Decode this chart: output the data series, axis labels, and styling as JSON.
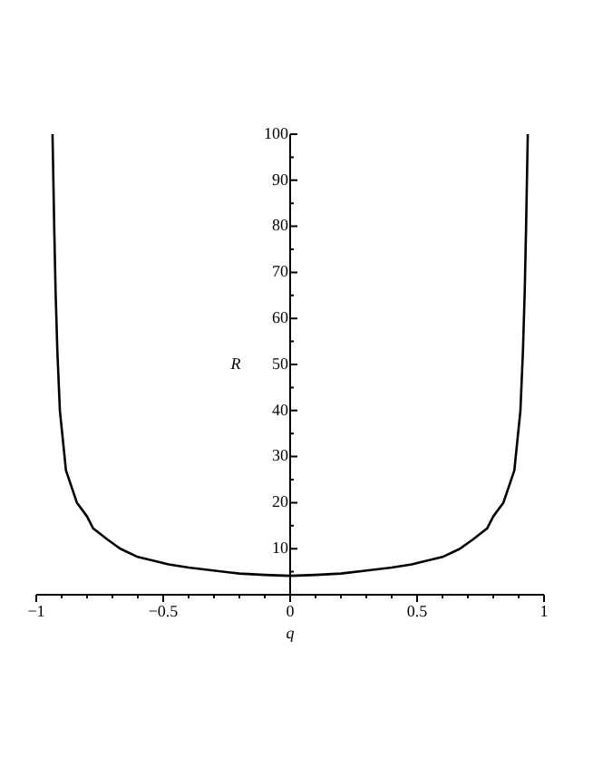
{
  "chart_data": {
    "type": "line",
    "xlabel": "q",
    "ylabel": "R",
    "xlim": [
      -1,
      1
    ],
    "ylim": [
      0,
      100
    ],
    "xticks": [
      -1,
      -0.5,
      0,
      0.5,
      1
    ],
    "yticks": [
      {
        "value": 0,
        "label": null
      },
      10,
      20,
      30,
      40,
      50,
      60,
      70,
      80,
      90,
      100
    ],
    "grid": false,
    "legend": false,
    "marker": "none",
    "line_style": "solid",
    "series": [
      {
        "color": "#000000",
        "x": [
          -0.936,
          -0.929,
          -0.924,
          -0.917,
          -0.907,
          -0.883,
          -0.84,
          -0.8,
          -0.776,
          -0.72,
          -0.669,
          -0.6,
          -0.479,
          -0.4,
          -0.31,
          -0.2,
          -0.1,
          0,
          0.1,
          0.2,
          0.31,
          0.4,
          0.479,
          0.6,
          0.669,
          0.72,
          0.776,
          0.8,
          0.84,
          0.883,
          0.907,
          0.917,
          0.924,
          0.929,
          0.936
        ],
        "values": [
          100,
          79,
          66,
          53,
          40,
          27,
          20,
          17,
          14.4,
          12,
          10,
          8.2,
          6.6,
          5.9,
          5.3,
          4.6,
          4.3,
          4.1,
          4.3,
          4.6,
          5.3,
          5.9,
          6.6,
          8.2,
          10,
          12,
          14.4,
          17,
          20,
          27,
          40,
          53,
          66,
          79,
          100
        ]
      }
    ]
  }
}
